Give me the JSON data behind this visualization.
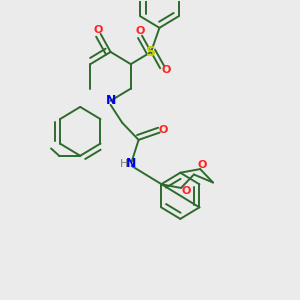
{
  "background_color": "#ebebeb",
  "bond_color": "#2d6b2d",
  "atom_colors": {
    "N": "#0000ee",
    "O": "#ff2222",
    "S": "#cccc00",
    "H": "#777777"
  },
  "figsize": [
    3.0,
    3.0
  ],
  "dpi": 100
}
